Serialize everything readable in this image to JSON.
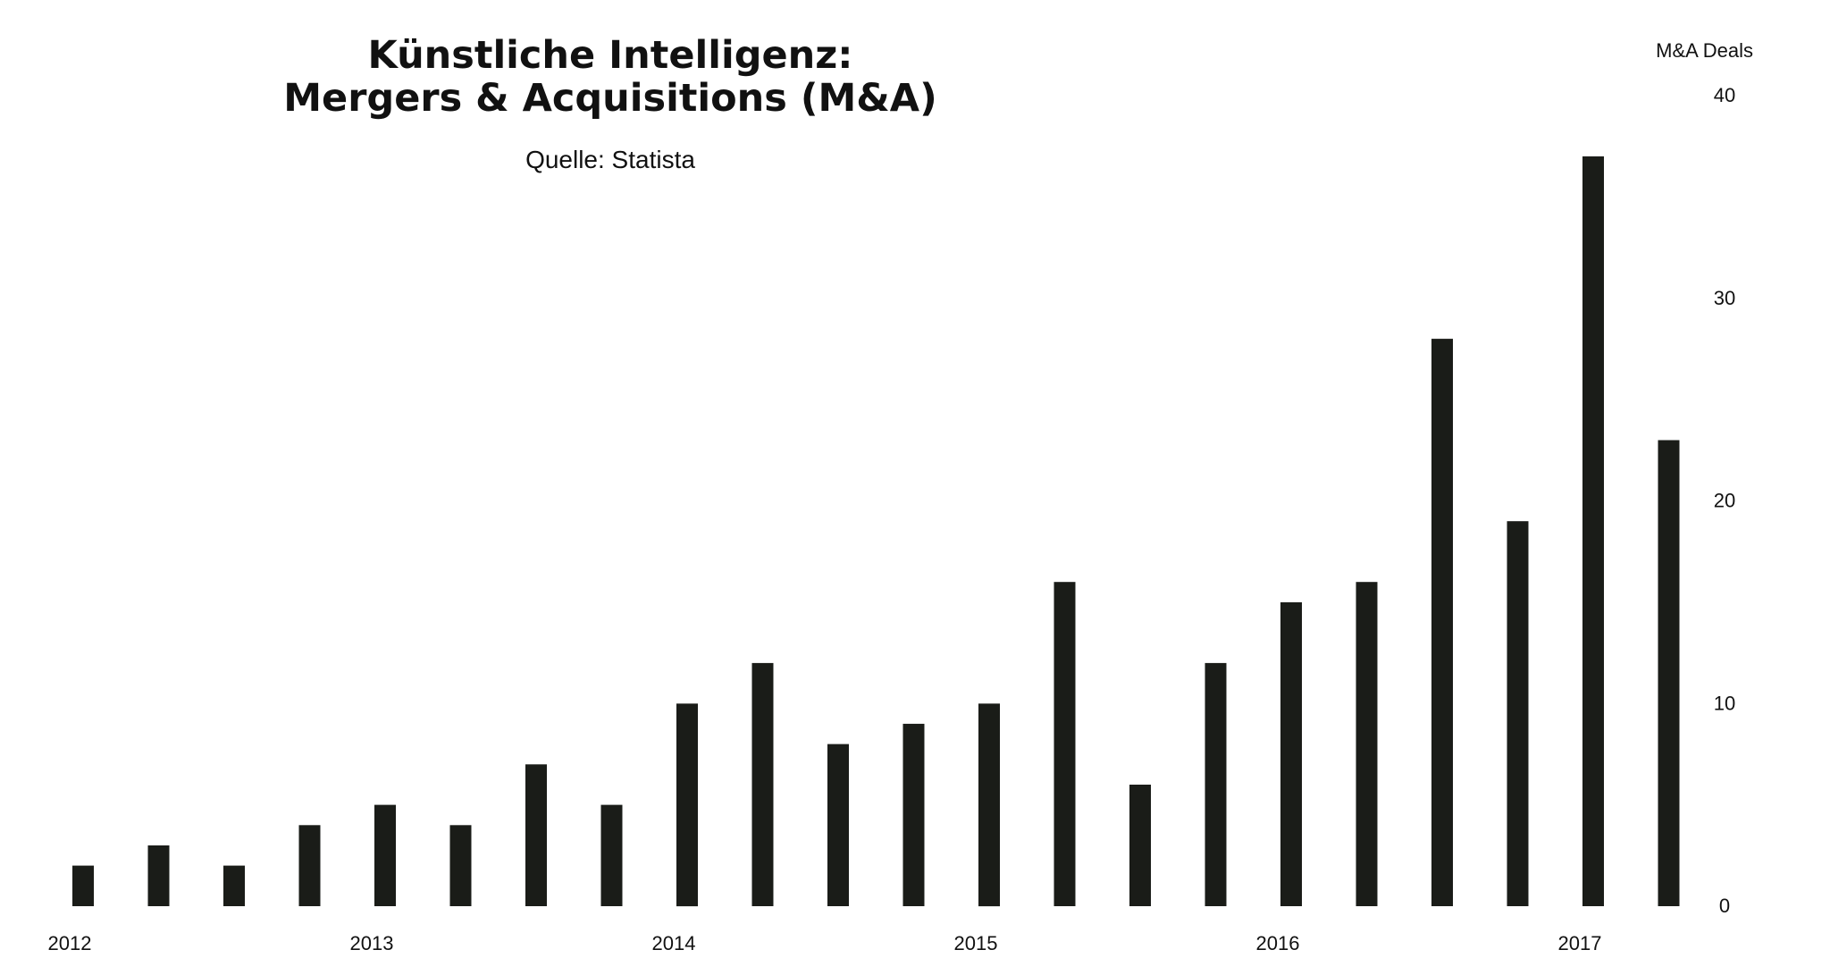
{
  "chart_data": {
    "type": "bar",
    "title_lines": [
      "Künstliche Intelligenz:",
      "Mergers & Acquisitions (M&A)"
    ],
    "subtitle": "Quelle: Statista",
    "ylabel": "M&A Deals",
    "ylim": [
      0,
      40
    ],
    "yticks": [
      0,
      10,
      20,
      30,
      40
    ],
    "year_labels": [
      "2012",
      "2013",
      "2014",
      "2015",
      "2016",
      "2017"
    ],
    "bars_per_year": 4,
    "values": [
      2,
      3,
      2,
      4,
      5,
      4,
      7,
      5,
      10,
      12,
      8,
      9,
      10,
      16,
      6,
      12,
      15,
      16,
      28,
      19,
      37,
      23
    ],
    "bar_color": "#1a1c18",
    "grid": false,
    "y_axis_position": "right"
  }
}
